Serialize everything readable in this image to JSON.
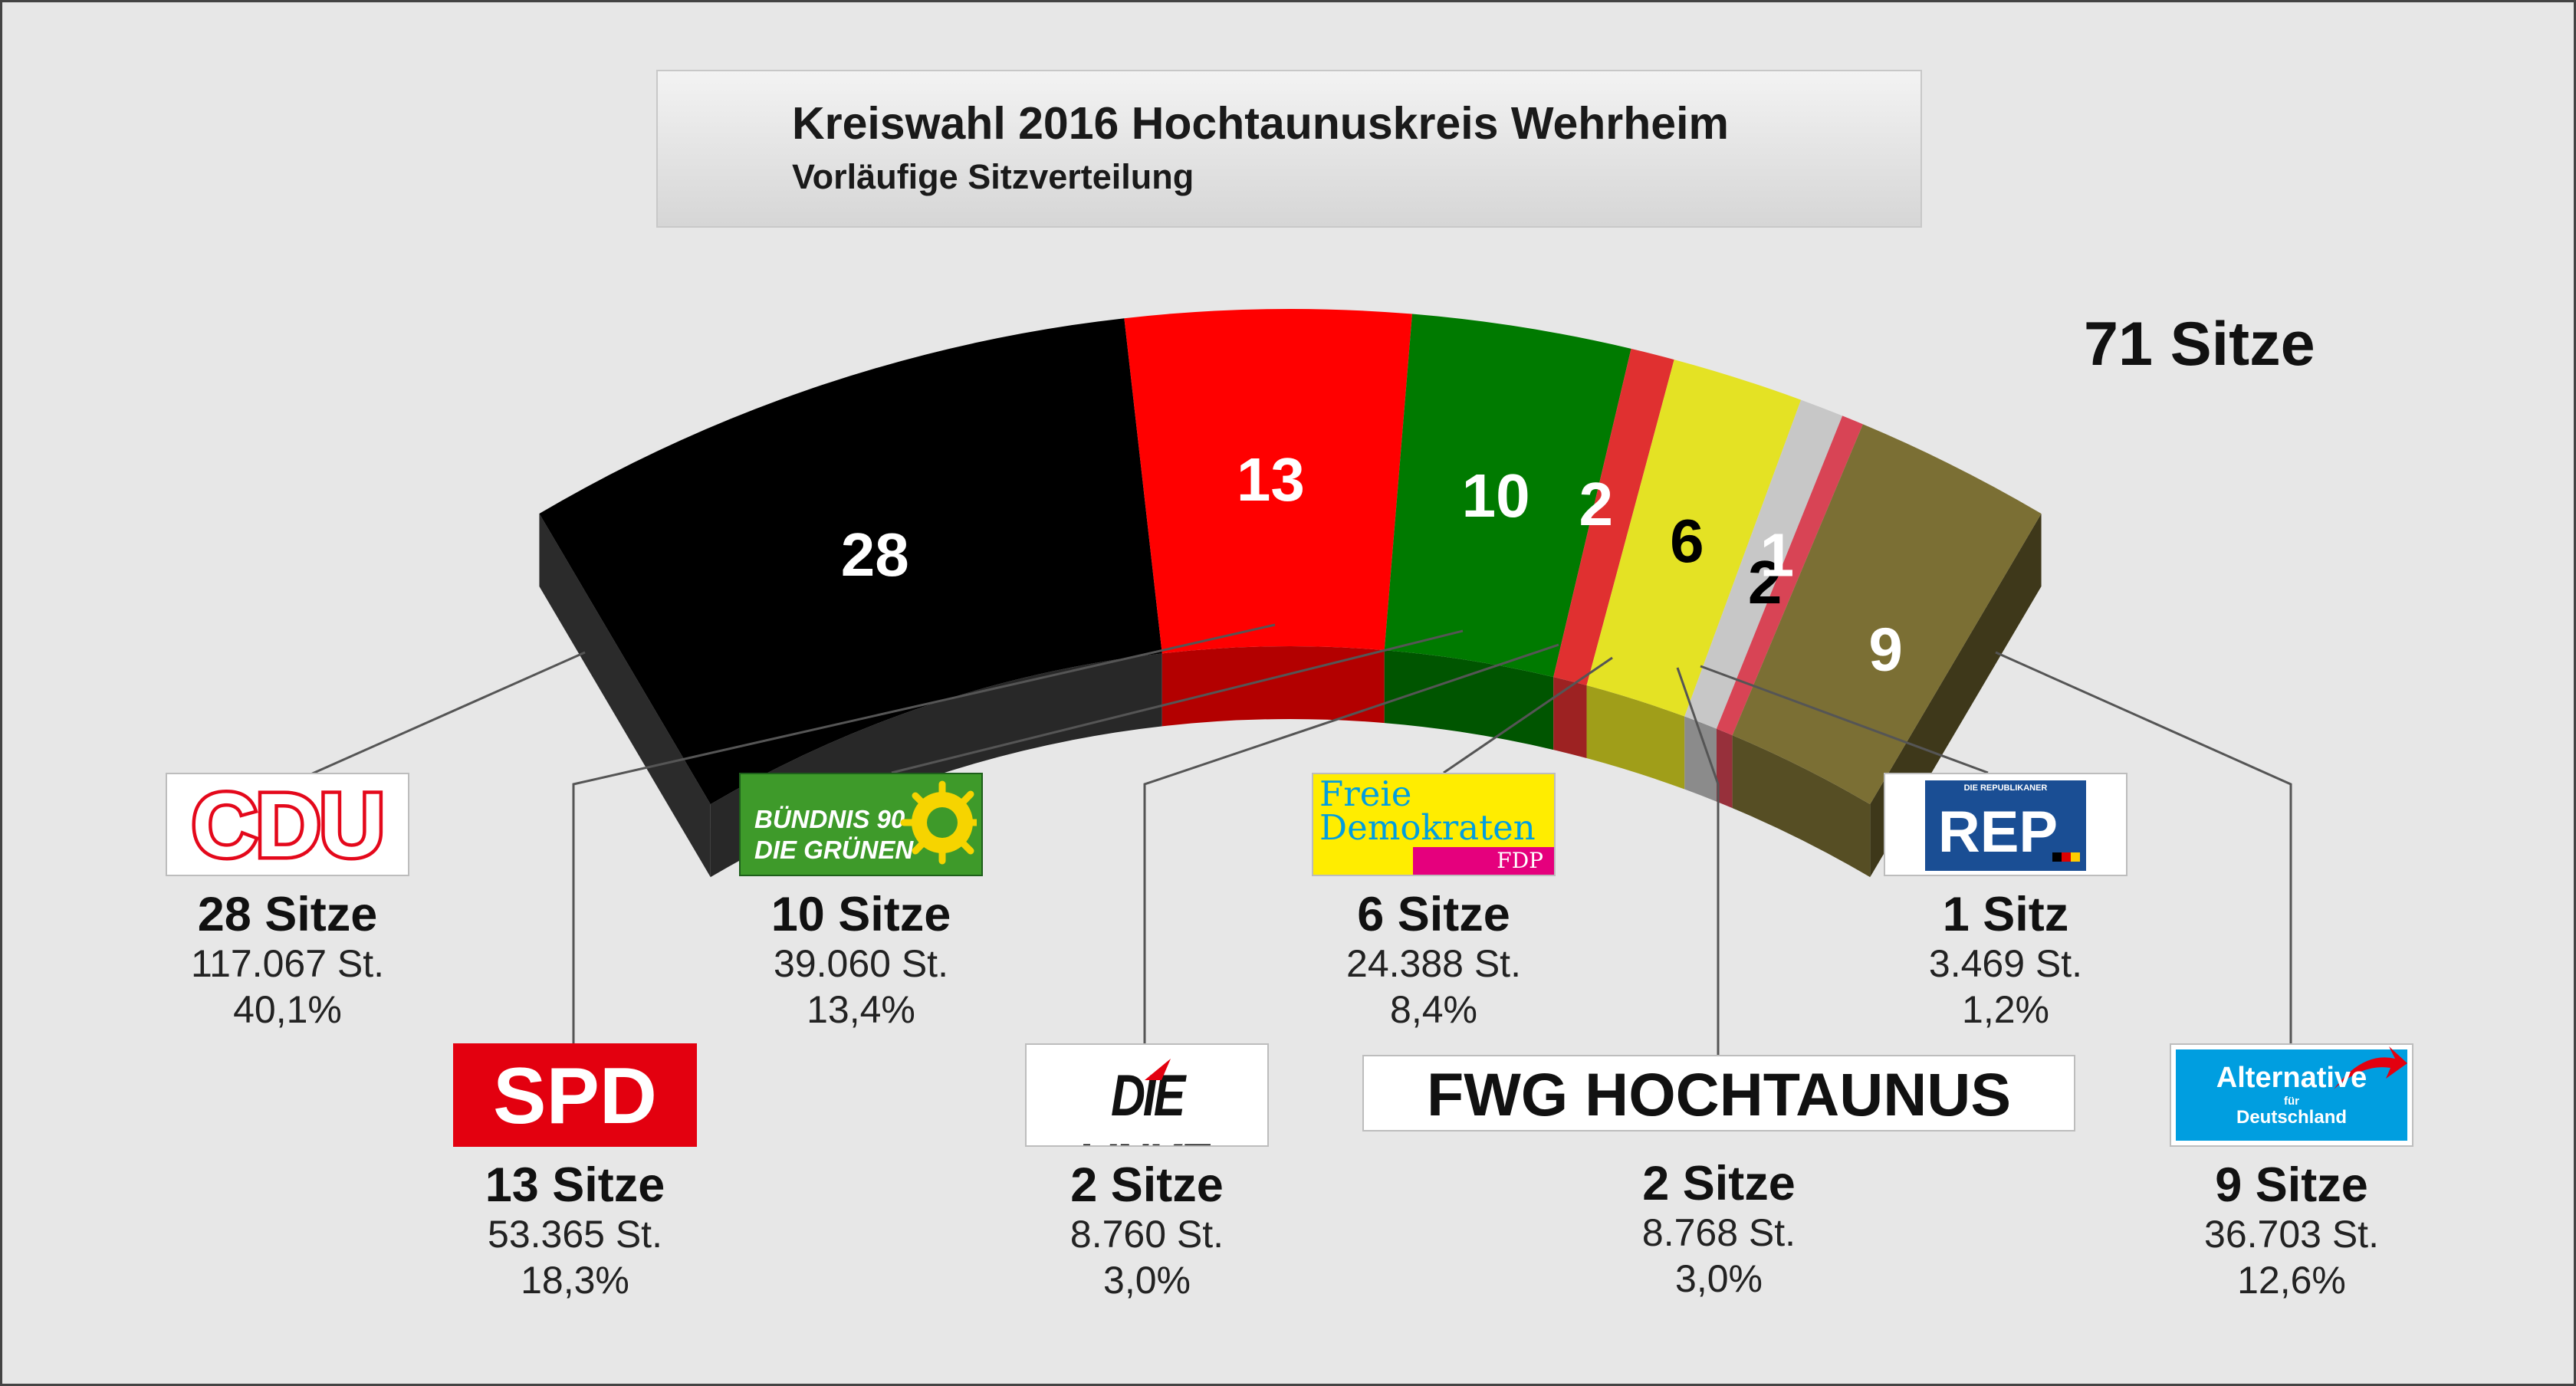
{
  "title": "Kreiswahl 2016 Hochtaunuskreis Wehrheim",
  "subtitle": "Vorläufige Sitzverteilung",
  "total_label": "71 Sitze",
  "chart_data": {
    "type": "semicircle-seat-distribution",
    "title": "Kreiswahl 2016 Hochtaunuskreis Wehrheim",
    "subtitle": "Vorläufige Sitzverteilung",
    "total_seats": 71,
    "series": [
      {
        "party": "CDU",
        "seats": 28,
        "votes": "117.067",
        "percent": "40,1%",
        "color": "#000000",
        "label_color": "#ffffff"
      },
      {
        "party": "SPD",
        "seats": 13,
        "votes": "53.365",
        "percent": "18,3%",
        "color": "#ff0000",
        "label_color": "#ffffff"
      },
      {
        "party": "GRÜNE",
        "seats": 10,
        "votes": "39.060",
        "percent": "13,4%",
        "color": "#007a00",
        "label_color": "#ffffff"
      },
      {
        "party": "DIE LINKE",
        "seats": 2,
        "votes": "8.760",
        "percent": "3,0%",
        "color": "#e03030",
        "label_color": "#ffffff"
      },
      {
        "party": "FDP",
        "seats": 6,
        "votes": "24.388",
        "percent": "8,4%",
        "color": "#e4e224",
        "label_color": "#000000"
      },
      {
        "party": "FWG",
        "seats": 2,
        "votes": "8.768",
        "percent": "3,0%",
        "color": "#c7c7c7",
        "label_color": "#000000"
      },
      {
        "party": "REP",
        "seats": 1,
        "votes": "3.469",
        "percent": "1,2%",
        "color": "#d84455",
        "label_color": "#ffffff"
      },
      {
        "party": "AfD",
        "seats": 9,
        "votes": "36.703",
        "percent": "12,6%",
        "color": "#7b6f34",
        "label_color": "#ffffff"
      }
    ]
  },
  "parties": [
    {
      "id": "cdu",
      "logo_text": "CDU",
      "seats_label": "28 Sitze",
      "votes_label": "117.067 St.",
      "percent_label": "40,1%"
    },
    {
      "id": "spd",
      "logo_text": "SPD",
      "seats_label": "13 Sitze",
      "votes_label": "53.365 St.",
      "percent_label": "18,3%"
    },
    {
      "id": "gruene",
      "logo_line1": "BÜNDNIS 90",
      "logo_line2": "DIE GRÜNEN",
      "seats_label": "10 Sitze",
      "votes_label": "39.060 St.",
      "percent_label": "13,4%"
    },
    {
      "id": "linke",
      "logo_text": "DIE LINKE.",
      "seats_label": "2 Sitze",
      "votes_label": "8.760 St.",
      "percent_label": "3,0%"
    },
    {
      "id": "fdp",
      "logo_line1": "Freie",
      "logo_line2": "Demokraten",
      "logo_tag": "FDP",
      "seats_label": "6 Sitze",
      "votes_label": "24.388 St.",
      "percent_label": "8,4%"
    },
    {
      "id": "fwg",
      "logo_text": "FWG HOCHTAUNUS",
      "seats_label": "2 Sitze",
      "votes_label": "8.768 St.",
      "percent_label": "3,0%"
    },
    {
      "id": "rep",
      "logo_top": "DIE REPUBLIKANER",
      "logo_text": "REP",
      "seats_label": "1 Sitz",
      "votes_label": "3.469 St.",
      "percent_label": "1,2%"
    },
    {
      "id": "afd",
      "logo_line1": "Alternative",
      "logo_line2": "für",
      "logo_line3": "Deutschland",
      "seats_label": "9 Sitze",
      "votes_label": "36.703 St.",
      "percent_label": "12,6%"
    }
  ]
}
